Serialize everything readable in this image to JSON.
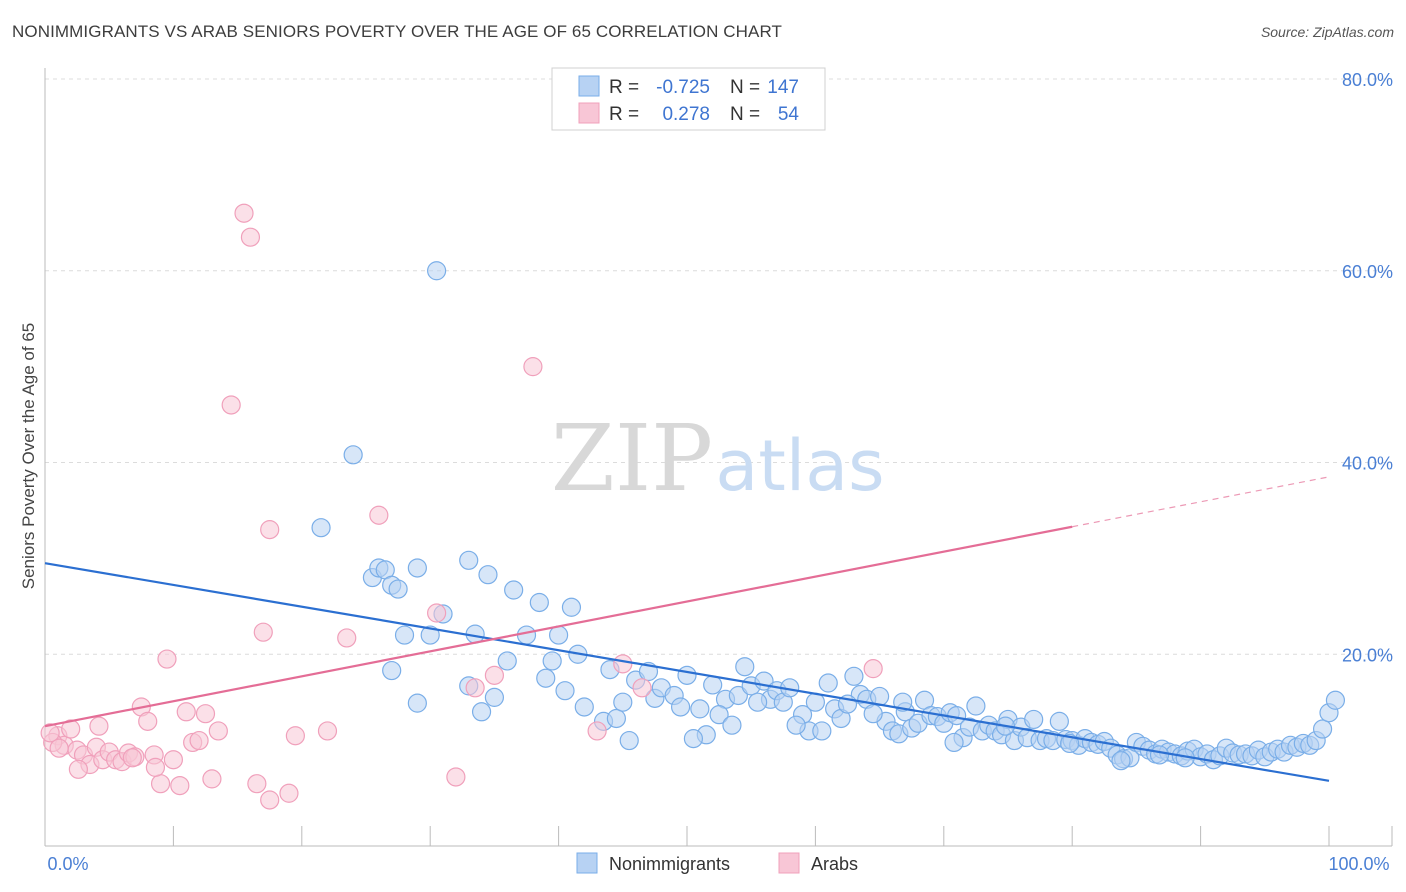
{
  "title": "NONIMMIGRANTS VS ARAB SENIORS POVERTY OVER THE AGE OF 65 CORRELATION CHART",
  "source": "Source: ZipAtlas.com",
  "watermark": {
    "zip": "ZIP",
    "atlas": "atlas"
  },
  "chart_data": {
    "type": "scatter",
    "xlabel": "",
    "ylabel": "Seniors Poverty Over the Age of 65",
    "xlim": [
      0,
      100
    ],
    "ylim": [
      0,
      80
    ],
    "x_tick_labels": [
      {
        "value": 0,
        "label": "0.0%"
      },
      {
        "value": 100,
        "label": "100.0%"
      }
    ],
    "y_tick_labels": [
      {
        "value": 20,
        "label": "20.0%"
      },
      {
        "value": 40,
        "label": "40.0%"
      },
      {
        "value": 60,
        "label": "60.0%"
      },
      {
        "value": 80,
        "label": "80.0%"
      }
    ],
    "grid": true,
    "legend_placement": "top-center",
    "stats": [
      {
        "r_label": "R =",
        "r_value": "-0.725",
        "n_label": "N =",
        "n_value": "147"
      },
      {
        "r_label": "R =",
        "r_value": "0.278",
        "n_label": "N =",
        "n_value": "54"
      }
    ],
    "series": [
      {
        "name": "Nonimmigrants",
        "color": "#7aaee8",
        "fill": "#b7d2f3",
        "line_color": "#2b6fd1",
        "trend": {
          "x": [
            0,
            100
          ],
          "y": [
            29.5,
            6.8
          ],
          "dashed_from": null
        },
        "points": [
          [
            30.5,
            60.0
          ],
          [
            24.0,
            40.8
          ],
          [
            21.5,
            33.2
          ],
          [
            33.0,
            29.8
          ],
          [
            34.5,
            28.3
          ],
          [
            36.5,
            26.7
          ],
          [
            38.5,
            25.4
          ],
          [
            41.0,
            24.9
          ],
          [
            25.5,
            28.0
          ],
          [
            26.0,
            29.0
          ],
          [
            26.5,
            28.8
          ],
          [
            27.0,
            27.2
          ],
          [
            27.5,
            26.8
          ],
          [
            29.0,
            29.0
          ],
          [
            30.0,
            22.0
          ],
          [
            31.0,
            24.2
          ],
          [
            28.0,
            22.0
          ],
          [
            33.5,
            22.1
          ],
          [
            36.0,
            19.3
          ],
          [
            37.5,
            22.0
          ],
          [
            40.0,
            22.0
          ],
          [
            41.5,
            20.0
          ],
          [
            44.0,
            18.4
          ],
          [
            47.5,
            15.4
          ],
          [
            27.0,
            18.3
          ],
          [
            29.0,
            14.9
          ],
          [
            33.0,
            16.7
          ],
          [
            35.0,
            15.5
          ],
          [
            34.0,
            14.0
          ],
          [
            39.0,
            17.5
          ],
          [
            40.5,
            16.2
          ],
          [
            39.5,
            19.3
          ],
          [
            42.0,
            14.5
          ],
          [
            43.5,
            13.0
          ],
          [
            44.5,
            13.3
          ],
          [
            45.0,
            15.0
          ],
          [
            45.5,
            11.0
          ],
          [
            46.0,
            17.3
          ],
          [
            47.0,
            18.2
          ],
          [
            48.0,
            16.5
          ],
          [
            49.0,
            15.7
          ],
          [
            50.0,
            17.8
          ],
          [
            51.0,
            14.3
          ],
          [
            51.5,
            11.6
          ],
          [
            52.0,
            16.8
          ],
          [
            53.0,
            15.3
          ],
          [
            54.0,
            15.7
          ],
          [
            54.5,
            18.7
          ],
          [
            55.0,
            16.7
          ],
          [
            56.0,
            17.2
          ],
          [
            56.5,
            15.3
          ],
          [
            57.0,
            16.2
          ],
          [
            57.5,
            15.0
          ],
          [
            58.0,
            16.5
          ],
          [
            59.0,
            13.7
          ],
          [
            59.5,
            12.0
          ],
          [
            60.0,
            15.0
          ],
          [
            61.0,
            17.0
          ],
          [
            61.5,
            14.3
          ],
          [
            62.0,
            13.3
          ],
          [
            63.0,
            17.7
          ],
          [
            63.5,
            15.8
          ],
          [
            64.0,
            15.3
          ],
          [
            65.0,
            15.6
          ],
          [
            65.5,
            13.0
          ],
          [
            66.0,
            12.0
          ],
          [
            66.5,
            11.7
          ],
          [
            67.0,
            14.0
          ],
          [
            67.5,
            12.3
          ],
          [
            68.0,
            12.8
          ],
          [
            68.5,
            15.2
          ],
          [
            69.0,
            13.6
          ],
          [
            69.5,
            13.5
          ],
          [
            70.0,
            12.8
          ],
          [
            70.5,
            13.9
          ],
          [
            71.0,
            13.6
          ],
          [
            71.5,
            11.3
          ],
          [
            72.0,
            12.4
          ],
          [
            72.5,
            14.6
          ],
          [
            73.0,
            12.0
          ],
          [
            73.5,
            12.6
          ],
          [
            74.0,
            12.0
          ],
          [
            74.5,
            11.6
          ],
          [
            75.0,
            13.2
          ],
          [
            75.5,
            11.0
          ],
          [
            76.0,
            12.4
          ],
          [
            76.5,
            11.3
          ],
          [
            77.0,
            13.2
          ],
          [
            77.5,
            11.0
          ],
          [
            78.0,
            11.2
          ],
          [
            78.5,
            11.0
          ],
          [
            79.0,
            13.0
          ],
          [
            79.5,
            11.1
          ],
          [
            80.0,
            11.0
          ],
          [
            80.5,
            10.5
          ],
          [
            81.0,
            11.2
          ],
          [
            81.5,
            10.8
          ],
          [
            82.0,
            10.6
          ],
          [
            82.5,
            10.9
          ],
          [
            83.0,
            10.2
          ],
          [
            83.5,
            9.5
          ],
          [
            84.0,
            9.1
          ],
          [
            84.5,
            9.2
          ],
          [
            85.0,
            10.8
          ],
          [
            85.5,
            10.4
          ],
          [
            86.0,
            10.0
          ],
          [
            86.5,
            9.6
          ],
          [
            87.0,
            10.1
          ],
          [
            87.5,
            9.8
          ],
          [
            88.0,
            9.6
          ],
          [
            88.5,
            9.4
          ],
          [
            89.0,
            9.9
          ],
          [
            89.5,
            10.1
          ],
          [
            90.0,
            9.3
          ],
          [
            90.5,
            9.6
          ],
          [
            91.0,
            9.0
          ],
          [
            91.5,
            9.4
          ],
          [
            92.0,
            10.2
          ],
          [
            92.5,
            9.7
          ],
          [
            93.0,
            9.5
          ],
          [
            93.5,
            9.6
          ],
          [
            94.0,
            9.4
          ],
          [
            94.5,
            10.0
          ],
          [
            95.0,
            9.3
          ],
          [
            95.5,
            9.8
          ],
          [
            96.0,
            10.1
          ],
          [
            96.5,
            9.8
          ],
          [
            97.0,
            10.5
          ],
          [
            97.5,
            10.3
          ],
          [
            98.0,
            10.7
          ],
          [
            98.5,
            10.5
          ],
          [
            99.0,
            11.0
          ],
          [
            99.5,
            12.2
          ],
          [
            100.0,
            13.9
          ],
          [
            100.5,
            15.2
          ],
          [
            49.5,
            14.5
          ],
          [
            50.5,
            11.2
          ],
          [
            52.5,
            13.7
          ],
          [
            53.5,
            12.6
          ],
          [
            55.5,
            15.0
          ],
          [
            58.5,
            12.6
          ],
          [
            60.5,
            12.0
          ],
          [
            62.5,
            14.8
          ],
          [
            64.5,
            13.8
          ],
          [
            66.8,
            15.0
          ],
          [
            70.8,
            10.8
          ],
          [
            74.8,
            12.5
          ],
          [
            79.8,
            10.7
          ],
          [
            83.8,
            8.9
          ],
          [
            86.8,
            9.5
          ],
          [
            88.8,
            9.2
          ]
        ]
      },
      {
        "name": "Arabs",
        "color": "#f0a0bb",
        "fill": "#f8c6d6",
        "line_color": "#e46d96",
        "trend": {
          "x": [
            0,
            100
          ],
          "y": [
            12.5,
            38.5
          ],
          "dashed_from": 80
        },
        "points": [
          [
            15.5,
            66.0
          ],
          [
            16.0,
            63.5
          ],
          [
            14.5,
            46.0
          ],
          [
            38.0,
            50.0
          ],
          [
            26.0,
            34.5
          ],
          [
            17.5,
            33.0
          ],
          [
            17.0,
            22.3
          ],
          [
            23.5,
            21.7
          ],
          [
            30.5,
            24.3
          ],
          [
            35.0,
            17.8
          ],
          [
            33.5,
            16.5
          ],
          [
            45.0,
            19.0
          ],
          [
            46.5,
            16.5
          ],
          [
            64.5,
            18.5
          ],
          [
            9.5,
            19.5
          ],
          [
            7.5,
            14.5
          ],
          [
            8.0,
            13.0
          ],
          [
            11.0,
            14.0
          ],
          [
            12.5,
            13.8
          ],
          [
            11.5,
            10.8
          ],
          [
            10.0,
            9.0
          ],
          [
            13.5,
            12.0
          ],
          [
            12.0,
            11.0
          ],
          [
            1.0,
            11.5
          ],
          [
            1.5,
            10.5
          ],
          [
            2.0,
            12.2
          ],
          [
            2.5,
            10.0
          ],
          [
            3.0,
            9.5
          ],
          [
            3.5,
            8.5
          ],
          [
            4.0,
            10.3
          ],
          [
            4.5,
            9.0
          ],
          [
            5.0,
            9.8
          ],
          [
            5.5,
            9.0
          ],
          [
            6.0,
            8.8
          ],
          [
            6.5,
            9.7
          ],
          [
            7.0,
            9.3
          ],
          [
            8.5,
            9.5
          ],
          [
            9.0,
            6.5
          ],
          [
            10.5,
            6.3
          ],
          [
            13.0,
            7.0
          ],
          [
            16.5,
            6.5
          ],
          [
            17.5,
            4.8
          ],
          [
            19.0,
            5.5
          ],
          [
            22.0,
            12.0
          ],
          [
            19.5,
            11.5
          ],
          [
            6.8,
            9.2
          ],
          [
            4.2,
            12.5
          ],
          [
            2.6,
            8.0
          ],
          [
            0.6,
            10.8
          ],
          [
            0.4,
            11.8
          ],
          [
            1.1,
            10.2
          ],
          [
            43.0,
            12.0
          ],
          [
            32.0,
            7.2
          ],
          [
            8.6,
            8.2
          ]
        ]
      }
    ]
  }
}
